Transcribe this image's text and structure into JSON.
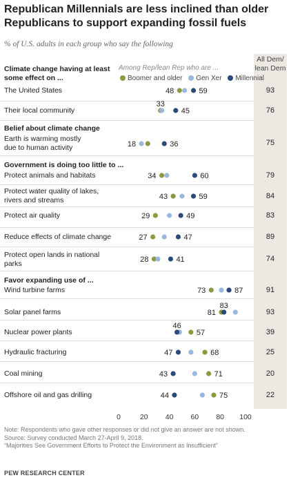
{
  "title": "Republican Millennials are less inclined than older Republicans to support expanding fossil fuels",
  "subtitle": "% of U.S. adults in each group who say the following",
  "dem_header": "All Dem/ lean Dem",
  "among_label": "Among Rep/lean Rep who are ...",
  "legend": [
    {
      "name": "Boomer and older",
      "color": "#8a9a3f"
    },
    {
      "name": "Gen Xer",
      "color": "#98b9dd"
    },
    {
      "name": "Millennial",
      "color": "#2a4a7a"
    }
  ],
  "sections": [
    {
      "label": "Climate change having at least some effect on ..."
    },
    {
      "label": "Belief about climate change"
    },
    {
      "label": "Government is doing too little to ..."
    },
    {
      "label": "Favor expanding use of ..."
    }
  ],
  "rows_text": [
    {
      "label": "The United States",
      "dem": "93"
    },
    {
      "label": "Their local community",
      "dem": "76"
    },
    {
      "label": "Earth is warming mostly due to human activity",
      "dem": "75"
    },
    {
      "label": "Protect animals and habitats",
      "dem": "79"
    },
    {
      "label": "Protect water quality of lakes, rivers and streams",
      "dem": "84"
    },
    {
      "label": "Protect air quality",
      "dem": "83"
    },
    {
      "label": "Reduce effects of climate change",
      "dem": "89"
    },
    {
      "label": "Protect open lands in national parks",
      "dem": "74"
    },
    {
      "label": "Wind turbine farms",
      "dem": "91"
    },
    {
      "label": "Solar panel farms",
      "dem": "93"
    },
    {
      "label": "Nuclear power plants",
      "dem": "39"
    },
    {
      "label": "Hydraulic fracturing",
      "dem": "25"
    },
    {
      "label": "Coal mining",
      "dem": "20"
    },
    {
      "label": "Offshore oil and gas drilling",
      "dem": "22"
    }
  ],
  "axis_ticks": [
    "0",
    "20",
    "40",
    "60",
    "80",
    "100"
  ],
  "notes": [
    "Note: Respondents who gave other responses or did not give an answer are not shown.",
    "Source: Survey conducted March 27-April 9, 2018.",
    "“Majorities See Government Efforts to Protect the Environment as Insufficient”"
  ],
  "source_org": "PEW RESEARCH CENTER",
  "chart_data": {
    "type": "scatter",
    "title": "Republican Millennials are less inclined than older Republicans to support expanding fossil fuels",
    "subtitle": "% of U.S. adults in each group who say the following",
    "xlim": [
      0,
      100
    ],
    "xticks": [
      0,
      20,
      40,
      60,
      80,
      100
    ],
    "series_names": [
      "Boomer and older",
      "Gen Xer",
      "Millennial"
    ],
    "rows": [
      {
        "category": "The United States",
        "boomer": 48,
        "genx": 52,
        "millennial": 59,
        "dem": 93,
        "labels": {
          "left": "48",
          "right": "59"
        }
      },
      {
        "category": "Their local community",
        "boomer": 33,
        "genx": 34,
        "millennial": 45,
        "dem": 76,
        "labels": {
          "top": "33",
          "right": "45"
        }
      },
      {
        "category": "Earth is warming mostly due to human activity",
        "boomer": 23,
        "genx": 18,
        "millennial": 36,
        "dem": 75,
        "labels": {
          "left": "18",
          "right": "36"
        }
      },
      {
        "category": "Protect animals and habitats",
        "boomer": 34,
        "genx": 38,
        "millennial": 60,
        "dem": 79,
        "labels": {
          "left": "34",
          "right": "60"
        }
      },
      {
        "category": "Protect water quality of lakes, rivers and streams",
        "boomer": 43,
        "genx": 50,
        "millennial": 59,
        "dem": 84,
        "labels": {
          "left": "43",
          "right": "59"
        }
      },
      {
        "category": "Protect air quality",
        "boomer": 29,
        "genx": 40,
        "millennial": 49,
        "dem": 83,
        "labels": {
          "left": "29",
          "right": "49"
        }
      },
      {
        "category": "Reduce effects of climate change",
        "boomer": 27,
        "genx": 36,
        "millennial": 47,
        "dem": 89,
        "labels": {
          "left": "27",
          "right": "47"
        }
      },
      {
        "category": "Protect open lands in national parks",
        "boomer": 28,
        "genx": 31,
        "millennial": 41,
        "dem": 74,
        "labels": {
          "left": "28",
          "right": "41"
        }
      },
      {
        "category": "Wind turbine farms",
        "boomer": 73,
        "genx": 81,
        "millennial": 87,
        "dem": 91,
        "labels": {
          "left": "73",
          "right": "87"
        }
      },
      {
        "category": "Solar panel farms",
        "boomer": 81,
        "genx": 92,
        "millennial": 83,
        "dem": 93,
        "labels": {
          "left": "81",
          "top": "83"
        }
      },
      {
        "category": "Nuclear power plants",
        "boomer": 57,
        "genx": 48,
        "millennial": 46,
        "dem": 39,
        "labels": {
          "top": "46",
          "right": "57"
        }
      },
      {
        "category": "Hydraulic fracturing",
        "boomer": 68,
        "genx": 57,
        "millennial": 47,
        "dem": 25,
        "labels": {
          "left": "47",
          "right": "68"
        }
      },
      {
        "category": "Coal mining",
        "boomer": 71,
        "genx": 60,
        "millennial": 43,
        "dem": 20,
        "labels": {
          "left": "43",
          "right": "71"
        }
      },
      {
        "category": "Offshore oil and gas drilling",
        "boomer": 75,
        "genx": 66,
        "millennial": 44,
        "dem": 22,
        "labels": {
          "left": "44",
          "right": "75"
        }
      }
    ]
  }
}
